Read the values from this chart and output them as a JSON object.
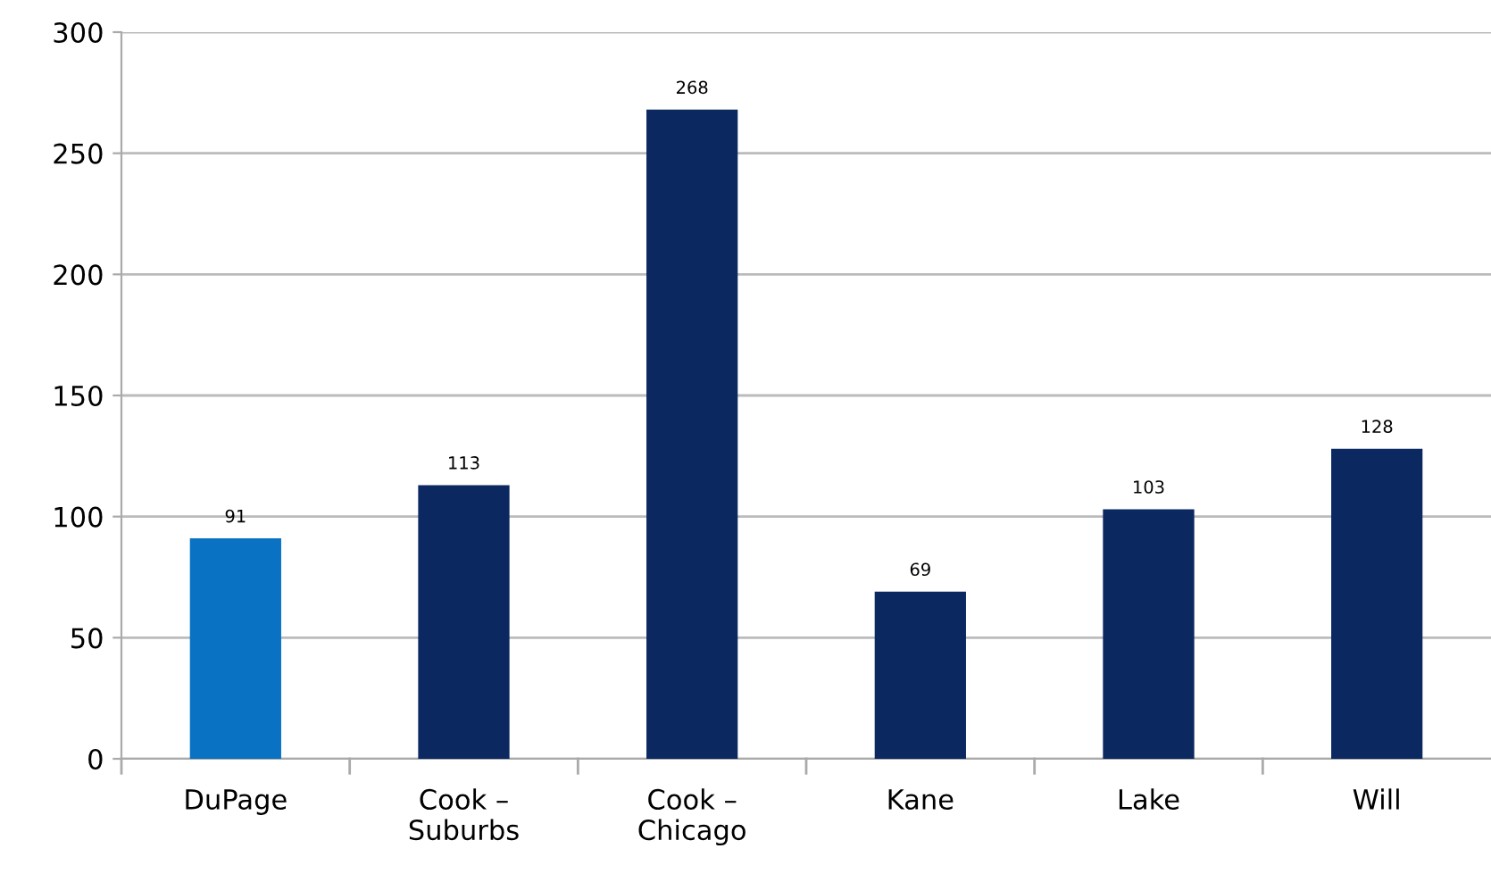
{
  "chart_data": {
    "type": "bar",
    "categories": [
      "DuPage",
      "Cook –\nSuburbs",
      "Cook –\nChicago",
      "Kane",
      "Lake",
      "Will"
    ],
    "values": [
      91,
      113,
      268,
      69,
      103,
      128
    ],
    "colors": [
      "#0a72c2",
      "#0b2860",
      "#0b2860",
      "#0b2860",
      "#0b2860",
      "#0b2860"
    ],
    "ylim": [
      0,
      300
    ],
    "yticks": [
      0,
      50,
      100,
      150,
      200,
      250,
      300
    ],
    "grid": "y",
    "data_labels": true
  }
}
